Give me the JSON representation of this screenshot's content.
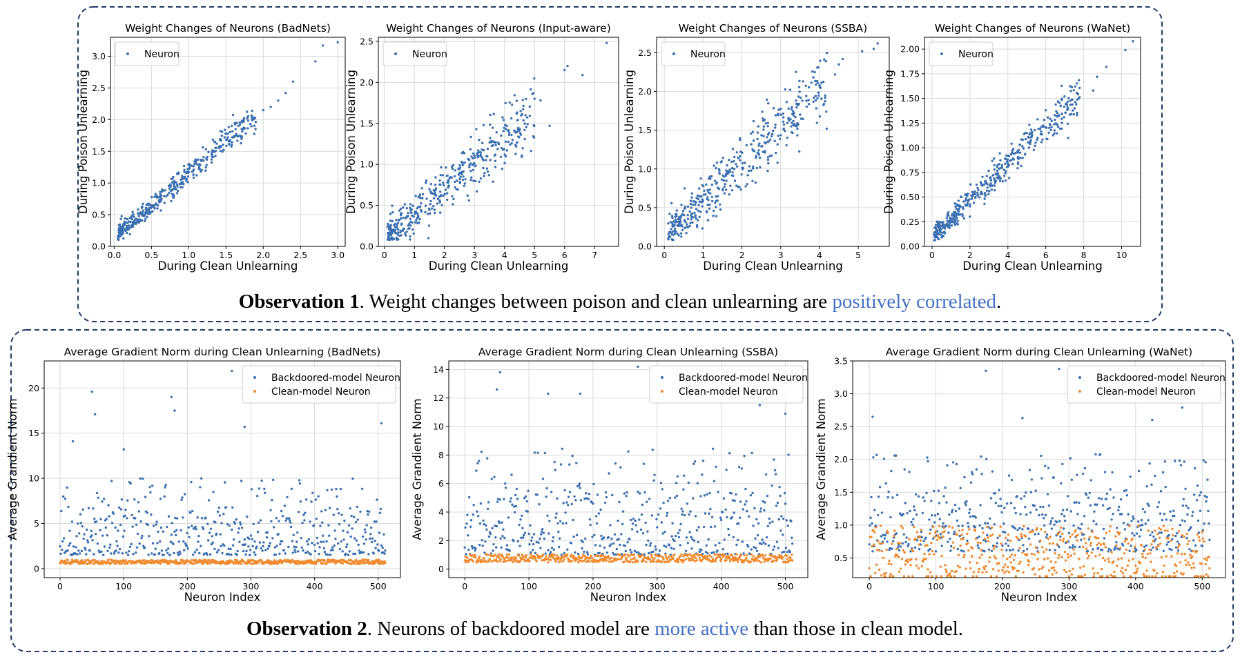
{
  "observations": [
    {
      "bold": "Observation 1",
      "pre": ". Weight changes between poison and clean unlearning are ",
      "highlight": "positively correlated",
      "post": ".",
      "highlight_color": "#4472c4"
    },
    {
      "bold": "Observation 2",
      "pre": ". Neurons of backdoored model are ",
      "highlight": "more active",
      "post": " than those in clean model.",
      "highlight_color": "#4472c4"
    }
  ],
  "colors": {
    "blue": "#3a6fb0",
    "orange": "#ef8a2e",
    "grid": "#d9d9d9",
    "frame": "#1f3864"
  },
  "chart_data": [
    {
      "type": "scatter",
      "title": "Weight Changes of Neurons (BadNets)",
      "xlabel": "During Clean Unlearning",
      "ylabel": "During Poison Unlearning",
      "xlim": [
        -0.05,
        3.1
      ],
      "ylim": [
        0,
        3.3
      ],
      "xticks": [
        0.0,
        0.5,
        1.0,
        1.5,
        2.0,
        2.5,
        3.0
      ],
      "yticks": [
        0.0,
        0.5,
        1.0,
        1.5,
        2.0,
        2.5,
        3.0
      ],
      "grid": true,
      "legend": "top-left",
      "series": [
        {
          "name": "Neuron",
          "pattern": "linear",
          "n": 420,
          "xmin": 0.05,
          "xmax": 1.9,
          "slope": 1.0,
          "intercept": 0.15,
          "noise": 0.06,
          "seed": 11,
          "extra_points": [
            [
              2.0,
              2.15
            ],
            [
              2.1,
              2.2
            ],
            [
              2.2,
              2.3
            ],
            [
              2.4,
              2.6
            ],
            [
              2.3,
              2.42
            ],
            [
              2.7,
              2.92
            ],
            [
              2.8,
              3.17
            ],
            [
              3.0,
              3.22
            ]
          ]
        }
      ]
    },
    {
      "type": "scatter",
      "title": "Weight Changes of Neurons (Input-aware)",
      "xlabel": "During Clean Unlearning",
      "ylabel": "During Poison Unlearning",
      "xlim": [
        -0.2,
        7.8
      ],
      "ylim": [
        0,
        2.55
      ],
      "xticks": [
        0,
        1,
        2,
        3,
        4,
        5,
        6,
        7
      ],
      "yticks": [
        0.0,
        0.5,
        1.0,
        1.5,
        2.0,
        2.5
      ],
      "grid": true,
      "legend": "top-left",
      "series": [
        {
          "name": "Neuron",
          "pattern": "linear",
          "n": 430,
          "xmin": 0.1,
          "xmax": 5.0,
          "slope": 0.3,
          "intercept": 0.12,
          "noise": 0.1,
          "seed": 23,
          "extra_points": [
            [
              5.0,
              1.8
            ],
            [
              5.2,
              1.78
            ],
            [
              5.5,
              1.47
            ],
            [
              6.0,
              2.15
            ],
            [
              6.1,
              2.2
            ],
            [
              6.6,
              2.09
            ],
            [
              7.4,
              2.48
            ]
          ]
        }
      ]
    },
    {
      "type": "scatter",
      "title": "Weight Changes of Neurons (SSBA)",
      "xlabel": "During Clean Unlearning",
      "ylabel": "During Poison Unlearning",
      "xlim": [
        -0.2,
        5.8
      ],
      "ylim": [
        0,
        2.7
      ],
      "xticks": [
        0,
        1,
        2,
        3,
        4,
        5
      ],
      "yticks": [
        0.0,
        0.5,
        1.0,
        1.5,
        2.0,
        2.5
      ],
      "grid": true,
      "legend": "top-left",
      "series": [
        {
          "name": "Neuron",
          "pattern": "linear",
          "n": 430,
          "xmin": 0.1,
          "xmax": 4.2,
          "slope": 0.47,
          "intercept": 0.12,
          "noise": 0.11,
          "seed": 37,
          "extra_points": [
            [
              4.4,
              2.22
            ],
            [
              4.5,
              2.35
            ],
            [
              4.6,
              2.42
            ],
            [
              5.1,
              2.52
            ],
            [
              5.4,
              2.55
            ],
            [
              5.5,
              2.62
            ]
          ]
        }
      ]
    },
    {
      "type": "scatter",
      "title": "Weight Changes of Neurons (WaNet)",
      "xlabel": "During Clean Unlearning",
      "ylabel": "During Poison Unlearning",
      "xlim": [
        -0.4,
        11.0
      ],
      "ylim": [
        0,
        2.12
      ],
      "xticks": [
        0,
        2,
        4,
        6,
        8,
        10
      ],
      "yticks": [
        0.0,
        0.25,
        0.5,
        0.75,
        1.0,
        1.25,
        1.5,
        1.75,
        2.0
      ],
      "grid": true,
      "legend": "top-left",
      "series": [
        {
          "name": "Neuron",
          "pattern": "linear",
          "n": 430,
          "xmin": 0.1,
          "xmax": 7.8,
          "slope": 0.185,
          "intercept": 0.09,
          "noise": 0.055,
          "seed": 41,
          "extra_points": [
            [
              8.5,
              1.58
            ],
            [
              8.7,
              1.72
            ],
            [
              9.2,
              1.82
            ],
            [
              10.2,
              1.99
            ],
            [
              10.6,
              2.08
            ]
          ]
        }
      ]
    },
    {
      "type": "scatter",
      "title": "Average Gradient Norm during Clean Unlearning (BadNets)",
      "xlabel": "Neuron Index",
      "ylabel": "Average Grandient Norm",
      "xlim": [
        -25,
        535
      ],
      "ylim": [
        -1,
        23
      ],
      "xticks": [
        0,
        100,
        200,
        300,
        400,
        500
      ],
      "yticks": [
        0,
        5,
        10,
        15,
        20
      ],
      "grid": true,
      "legend": "top-right",
      "series": [
        {
          "name": "Backdoored-model Neuron",
          "pattern": "index",
          "n": 512,
          "base": 1.5,
          "spread": 8.5,
          "min": 0.3,
          "max": 13.5,
          "seed": 53,
          "extra_points": [
            [
              50,
              19.6
            ],
            [
              55,
              17.1
            ],
            [
              175,
              19.0
            ],
            [
              180,
              17.5
            ],
            [
              270,
              21.9
            ],
            [
              290,
              15.7
            ],
            [
              505,
              16.1
            ],
            [
              20,
              14.1
            ],
            [
              100,
              13.2
            ]
          ]
        },
        {
          "name": "Clean-model Neuron",
          "pattern": "index",
          "n": 512,
          "base": 0.75,
          "spread": 0.3,
          "min": 0.3,
          "max": 1.2,
          "seed": 59,
          "extra_points": []
        }
      ]
    },
    {
      "type": "scatter",
      "title": "Average Gradient Norm during Clean Unlearning (SSBA)",
      "xlabel": "Neuron Index",
      "ylabel": "Average Grandient Norm",
      "xlim": [
        -25,
        535
      ],
      "ylim": [
        -0.6,
        14.6
      ],
      "xticks": [
        0,
        100,
        200,
        300,
        400,
        500
      ],
      "yticks": [
        0,
        2,
        4,
        6,
        8,
        10,
        12,
        14
      ],
      "grid": true,
      "legend": "top-right",
      "series": [
        {
          "name": "Backdoored-model Neuron",
          "pattern": "index",
          "n": 512,
          "base": 1.0,
          "spread": 7.5,
          "min": 0.3,
          "max": 11.0,
          "seed": 61,
          "extra_points": [
            [
              55,
              13.8
            ],
            [
              50,
              12.6
            ],
            [
              130,
              12.3
            ],
            [
              180,
              12.3
            ],
            [
              270,
              14.2
            ],
            [
              460,
              11.5
            ],
            [
              500,
              10.9
            ]
          ]
        },
        {
          "name": "Clean-model Neuron",
          "pattern": "index",
          "n": 512,
          "base": 0.75,
          "spread": 0.35,
          "min": 0.3,
          "max": 1.3,
          "seed": 67,
          "extra_points": []
        }
      ]
    },
    {
      "type": "scatter",
      "title": "Average Gradient Norm during Clean Unlearning (WaNet)",
      "xlabel": "Neuron Index",
      "ylabel": "Average Grandient Norm",
      "xlim": [
        -25,
        535
      ],
      "ylim": [
        0.2,
        3.5
      ],
      "xticks": [
        0,
        100,
        200,
        300,
        400,
        500
      ],
      "yticks": [
        0.5,
        1.0,
        1.5,
        2.0,
        2.5,
        3.0,
        3.5
      ],
      "grid": true,
      "legend": "top-right",
      "series": [
        {
          "name": "Backdoored-model Neuron",
          "pattern": "index",
          "n": 512,
          "base": 0.6,
          "spread": 1.5,
          "min": 0.35,
          "max": 2.7,
          "seed": 71,
          "extra_points": [
            [
              5,
              2.65
            ],
            [
              175,
              3.35
            ],
            [
              285,
              3.38
            ],
            [
              470,
              2.79
            ],
            [
              230,
              2.63
            ],
            [
              425,
              2.6
            ]
          ]
        },
        {
          "name": "Clean-model Neuron",
          "pattern": "index",
          "n": 512,
          "base": 0.55,
          "spread": 0.55,
          "min": 0.22,
          "max": 1.25,
          "seed": 73,
          "extra_points": []
        }
      ]
    }
  ]
}
